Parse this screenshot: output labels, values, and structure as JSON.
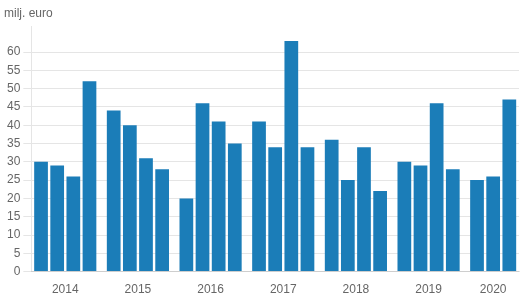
{
  "chart_data": {
    "type": "bar",
    "ylabel": "milj. euro",
    "categories": [
      "2014",
      null,
      null,
      null,
      "2015",
      null,
      null,
      null,
      "2016",
      null,
      null,
      null,
      "2017",
      null,
      null,
      null,
      "2018",
      null,
      null,
      null,
      "2019",
      null,
      null,
      null,
      "2020",
      null,
      null
    ],
    "values": [
      30,
      29,
      26,
      52,
      44,
      40,
      31,
      28,
      20,
      46,
      41,
      35,
      41,
      34,
      63,
      34,
      36,
      25,
      34,
      22,
      30,
      29,
      46,
      28,
      25,
      26,
      47
    ],
    "color": "#1b7db8",
    "ylim": [
      0,
      67
    ],
    "yticks": [
      0,
      5,
      10,
      15,
      20,
      25,
      30,
      35,
      40,
      45,
      50,
      55,
      60
    ],
    "grid": true
  }
}
